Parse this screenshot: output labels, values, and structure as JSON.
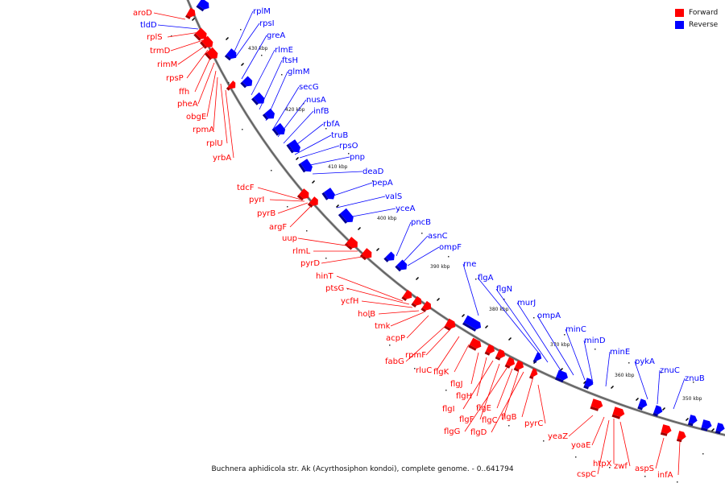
{
  "legend": {
    "forward_label": "Forward",
    "reverse_label": "Reverse",
    "forward_color": "#ff0000",
    "reverse_color": "#0000ff"
  },
  "caption": "Buchnera aphidicola str. Ak (Acyrthosiphon kondoi), complete genome. - 0..641794",
  "kbp_ticks": [
    "430 kbp",
    "420 kbp",
    "410 kbp",
    "400 kbp",
    "390 kbp",
    "380 kbp",
    "370 kbp",
    "360 kbp",
    "350 kbp"
  ],
  "reverse_genes": [
    "rplM",
    "rpsI",
    "greA",
    "rlmE",
    "ftsH",
    "glmM",
    "secG",
    "nusA",
    "infB",
    "rbfA",
    "truB",
    "rpsO",
    "pnp",
    "deaD",
    "pepA",
    "valS",
    "yceA",
    "pncB",
    "asnC",
    "ompF",
    "rne",
    "flgA",
    "flgN",
    "murJ",
    "ompA",
    "minC",
    "minD",
    "minE",
    "pykA",
    "znuC",
    "znuB",
    "tldD"
  ],
  "forward_genes": [
    "aroD",
    "rplS",
    "trmD",
    "rimM",
    "rpsP",
    "ffh",
    "pheA",
    "obgE",
    "rpmA",
    "rplU",
    "yrbA",
    "tdcF",
    "pyrI",
    "pyrB",
    "argF",
    "uup",
    "rlmL",
    "pyrD",
    "hinT",
    "ptsG",
    "ycfH",
    "holB",
    "tmk",
    "acpP",
    "fabG",
    "rpmF",
    "rluC",
    "flgK",
    "flgJ",
    "flgH",
    "flgI",
    "flgF",
    "flgG",
    "flgE",
    "flgC",
    "flgD",
    "flgB",
    "pyrC",
    "yeaZ",
    "yoaE",
    "htpX",
    "cspC",
    "zwf",
    "aspS",
    "infA"
  ]
}
